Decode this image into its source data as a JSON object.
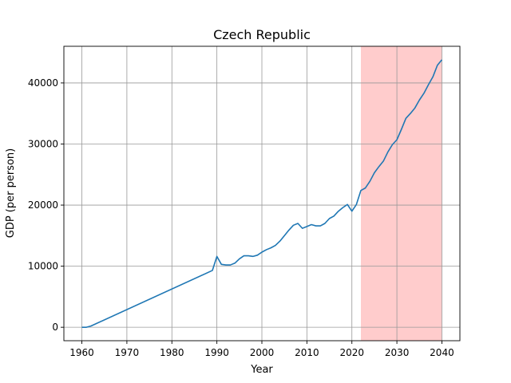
{
  "chart_data": {
    "type": "line",
    "title": "Czech Republic",
    "xlabel": "Year",
    "ylabel": "GDP (per person)",
    "xlim": [
      1956,
      2044
    ],
    "ylim": [
      -2200,
      46000
    ],
    "xticks": [
      1960,
      1970,
      1980,
      1990,
      2000,
      2010,
      2020,
      2030,
      2040
    ],
    "yticks": [
      0,
      10000,
      20000,
      30000,
      40000
    ],
    "grid": true,
    "highlight": {
      "from": 2022,
      "to": 2040,
      "color": "#ffcccc"
    },
    "series": [
      {
        "color": "#1f77b4",
        "points": [
          [
            1960,
            0
          ],
          [
            1961,
            0
          ],
          [
            1962,
            200
          ],
          [
            1989,
            9300
          ],
          [
            1990,
            11600
          ],
          [
            1991,
            10300
          ],
          [
            1992,
            10200
          ],
          [
            1993,
            10200
          ],
          [
            1994,
            10500
          ],
          [
            1995,
            11200
          ],
          [
            1996,
            11700
          ],
          [
            1997,
            11700
          ],
          [
            1998,
            11600
          ],
          [
            1999,
            11800
          ],
          [
            2000,
            12300
          ],
          [
            2001,
            12700
          ],
          [
            2002,
            13000
          ],
          [
            2003,
            13400
          ],
          [
            2004,
            14100
          ],
          [
            2005,
            15000
          ],
          [
            2006,
            15900
          ],
          [
            2007,
            16700
          ],
          [
            2008,
            17000
          ],
          [
            2009,
            16200
          ],
          [
            2010,
            16500
          ],
          [
            2011,
            16800
          ],
          [
            2012,
            16600
          ],
          [
            2013,
            16600
          ],
          [
            2014,
            17000
          ],
          [
            2015,
            17800
          ],
          [
            2016,
            18200
          ],
          [
            2017,
            19000
          ],
          [
            2018,
            19600
          ],
          [
            2019,
            20100
          ],
          [
            2020,
            19000
          ],
          [
            2021,
            20100
          ],
          [
            2022,
            22400
          ],
          [
            2023,
            22800
          ],
          [
            2024,
            23900
          ],
          [
            2025,
            25300
          ],
          [
            2026,
            26300
          ],
          [
            2027,
            27200
          ],
          [
            2028,
            28700
          ],
          [
            2029,
            29900
          ],
          [
            2030,
            30700
          ],
          [
            2031,
            32400
          ],
          [
            2032,
            34200
          ],
          [
            2033,
            35000
          ],
          [
            2034,
            35900
          ],
          [
            2035,
            37200
          ],
          [
            2036,
            38300
          ],
          [
            2037,
            39700
          ],
          [
            2038,
            41000
          ],
          [
            2039,
            42900
          ],
          [
            2040,
            43800
          ]
        ]
      }
    ]
  }
}
